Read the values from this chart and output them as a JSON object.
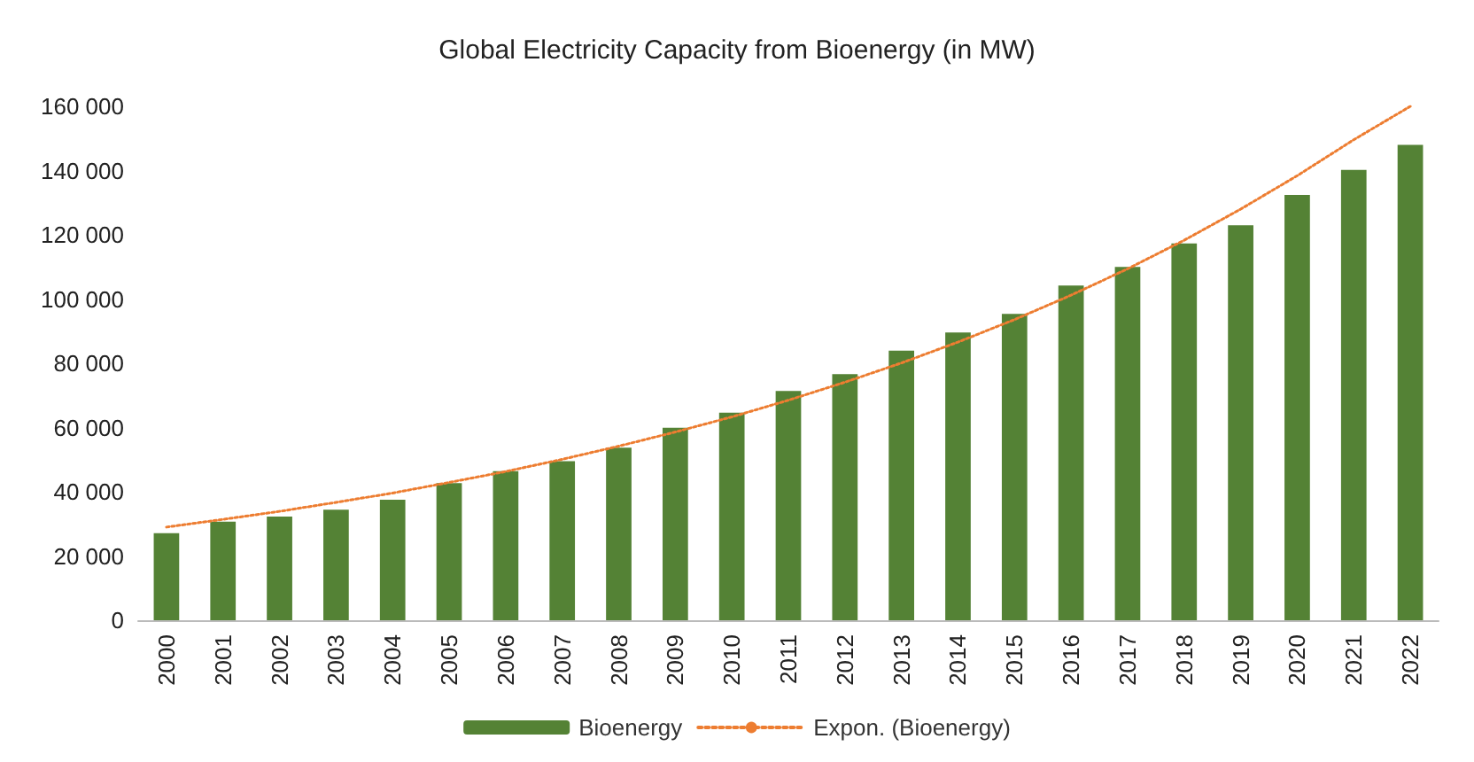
{
  "chart_data": {
    "type": "bar",
    "title": "Global Electricity Capacity from Bioenergy (in MW)",
    "categories": [
      "2000",
      "2001",
      "2002",
      "2003",
      "2004",
      "2005",
      "2006",
      "2007",
      "2008",
      "2009",
      "2010",
      "2011",
      "2012",
      "2013",
      "2014",
      "2015",
      "2016",
      "2017",
      "2018",
      "2019",
      "2020",
      "2021",
      "2022"
    ],
    "series": [
      {
        "name": "Bioenergy",
        "color": "#548235",
        "values": [
          27100,
          30700,
          32300,
          34400,
          37500,
          42700,
          46400,
          49500,
          53700,
          59900,
          64600,
          71400,
          76600,
          83900,
          89600,
          95400,
          104200,
          110000,
          117300,
          123000,
          132400,
          140200,
          148000
        ]
      },
      {
        "name": "Expon. (Bioenergy)",
        "type": "line",
        "color": "#ed7d31",
        "line_style": "dotted",
        "marker": "none",
        "values": [
          29000,
          31400,
          33900,
          36700,
          39600,
          42900,
          46300,
          50100,
          54200,
          58600,
          63300,
          68500,
          74100,
          80100,
          86600,
          93600,
          101200,
          109400,
          118300,
          128000,
          138400,
          149600,
          160000
        ]
      }
    ],
    "ylim": [
      0,
      160000
    ],
    "yticks": [
      0,
      {
        "value": 20000,
        "label": "20 000"
      },
      {
        "value": 40000,
        "label": "40 000"
      },
      {
        "value": 60000,
        "label": "60 000"
      },
      {
        "value": 80000,
        "label": "80 000"
      },
      {
        "value": 100000,
        "label": "100 000"
      },
      {
        "value": 120000,
        "label": "120 000"
      },
      {
        "value": 140000,
        "label": "140 000"
      },
      {
        "value": 160000,
        "label": "160 000"
      }
    ],
    "grid": false,
    "legend": "bottom"
  }
}
